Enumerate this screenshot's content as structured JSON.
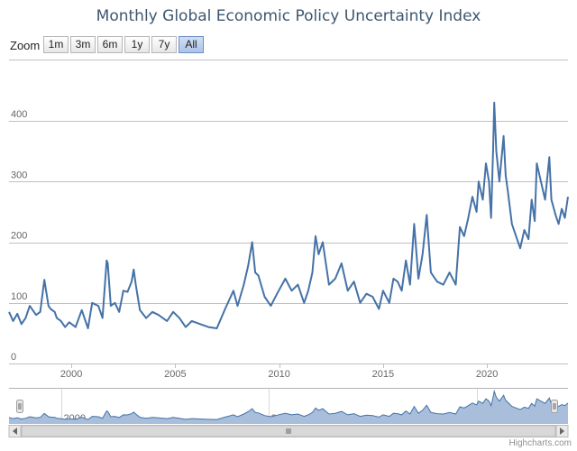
{
  "title": "Monthly Global Economic Policy Uncertainty Index",
  "range_selector": {
    "zoom_label": "Zoom",
    "buttons": [
      {
        "label": "1m",
        "active": false
      },
      {
        "label": "3m",
        "active": false
      },
      {
        "label": "6m",
        "active": false
      },
      {
        "label": "1y",
        "active": false
      },
      {
        "label": "7y",
        "active": false
      },
      {
        "label": "All",
        "active": true
      }
    ]
  },
  "credits": "Highcharts.com",
  "navigator": {
    "tick_labels": [
      "2000",
      "2010",
      "2020"
    ],
    "tick_years": [
      2000,
      2010,
      2020
    ]
  },
  "colors": {
    "line": "#4572a7",
    "navigator_fill": "#a8bedb",
    "grid": "#c0c0c0",
    "title": "#3e576f"
  },
  "chart_data": {
    "type": "line",
    "title": "Monthly Global Economic Policy Uncertainty Index",
    "xlabel": "",
    "ylabel": "",
    "x_ticks": [
      2000,
      2005,
      2010,
      2015,
      2020
    ],
    "x_tick_labels": [
      "2000",
      "2005",
      "2010",
      "2015",
      "2020"
    ],
    "y_ticks": [
      0,
      100,
      200,
      300,
      400
    ],
    "y_tick_labels": [
      "0",
      "100",
      "200",
      "300",
      "400"
    ],
    "xlim": [
      1997.0,
      2023.9
    ],
    "ylim": [
      0,
      430
    ],
    "grid": true,
    "legend": "none",
    "series": [
      {
        "x": [
          1997.0,
          1997.2,
          1997.4,
          1997.6,
          1997.8,
          1998.0,
          1998.3,
          1998.5,
          1998.7,
          1998.9,
          1999.0,
          1999.2,
          1999.3,
          1999.5,
          1999.7,
          1999.9,
          2000.2,
          2000.5,
          2000.8,
          2001.0,
          2001.3,
          2001.5,
          2001.7,
          2001.75,
          2001.9,
          2002.1,
          2002.3,
          2002.5,
          2002.7,
          2002.9,
          2003.0,
          2003.1,
          2003.3,
          2003.6,
          2003.9,
          2004.2,
          2004.6,
          2004.9,
          2005.2,
          2005.5,
          2005.8,
          2006.2,
          2006.6,
          2007.0,
          2007.4,
          2007.8,
          2008.0,
          2008.3,
          2008.5,
          2008.7,
          2008.85,
          2009.0,
          2009.3,
          2009.6,
          2009.9,
          2010.3,
          2010.6,
          2010.9,
          2011.2,
          2011.4,
          2011.6,
          2011.75,
          2011.9,
          2012.1,
          2012.4,
          2012.7,
          2013.0,
          2013.3,
          2013.6,
          2013.9,
          2014.2,
          2014.5,
          2014.8,
          2015.0,
          2015.3,
          2015.5,
          2015.7,
          2015.9,
          2016.1,
          2016.3,
          2016.5,
          2016.7,
          2016.9,
          2017.1,
          2017.3,
          2017.6,
          2017.9,
          2018.2,
          2018.5,
          2018.7,
          2018.9,
          2019.1,
          2019.3,
          2019.5,
          2019.6,
          2019.8,
          2019.95,
          2020.1,
          2020.2,
          2020.3,
          2020.35,
          2020.45,
          2020.6,
          2020.8,
          2020.9,
          2021.0,
          2021.2,
          2021.4,
          2021.6,
          2021.8,
          2022.0,
          2022.15,
          2022.3,
          2022.4,
          2022.6,
          2022.8,
          2023.0,
          2023.1,
          2023.3,
          2023.45,
          2023.6,
          2023.75,
          2023.9
        ],
        "values": [
          85,
          70,
          82,
          65,
          75,
          95,
          80,
          85,
          138,
          95,
          90,
          85,
          75,
          70,
          60,
          68,
          60,
          88,
          58,
          100,
          95,
          75,
          170,
          165,
          95,
          100,
          85,
          120,
          118,
          135,
          155,
          130,
          88,
          75,
          85,
          80,
          70,
          85,
          75,
          60,
          70,
          65,
          60,
          58,
          90,
          120,
          95,
          130,
          160,
          200,
          150,
          145,
          110,
          95,
          115,
          140,
          120,
          130,
          100,
          120,
          150,
          210,
          180,
          200,
          130,
          140,
          165,
          120,
          135,
          100,
          115,
          110,
          90,
          120,
          100,
          140,
          135,
          120,
          170,
          130,
          230,
          140,
          180,
          245,
          150,
          135,
          130,
          150,
          130,
          225,
          210,
          240,
          275,
          250,
          300,
          270,
          330,
          300,
          240,
          355,
          430,
          350,
          300,
          375,
          310,
          285,
          230,
          210,
          190,
          220,
          205,
          270,
          235,
          330,
          300,
          270,
          340,
          270,
          245,
          230,
          255,
          240,
          275
        ]
      }
    ]
  }
}
